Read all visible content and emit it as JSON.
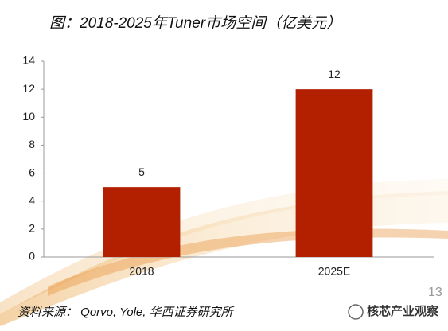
{
  "chart_data": {
    "type": "bar",
    "title": "图：2018-2025年Tuner市场空间（亿美元）",
    "categories": [
      "2018",
      "2025E"
    ],
    "values": [
      5,
      12
    ],
    "color": "#b22000",
    "ylim": [
      0,
      14
    ],
    "yticks": [
      0,
      2,
      4,
      6,
      8,
      10,
      12,
      14
    ],
    "grid": false,
    "source": "资料来源： Qorvo, Yole, 华西证券研究所",
    "page_number": "13",
    "watermark": "核芯产业观察"
  }
}
